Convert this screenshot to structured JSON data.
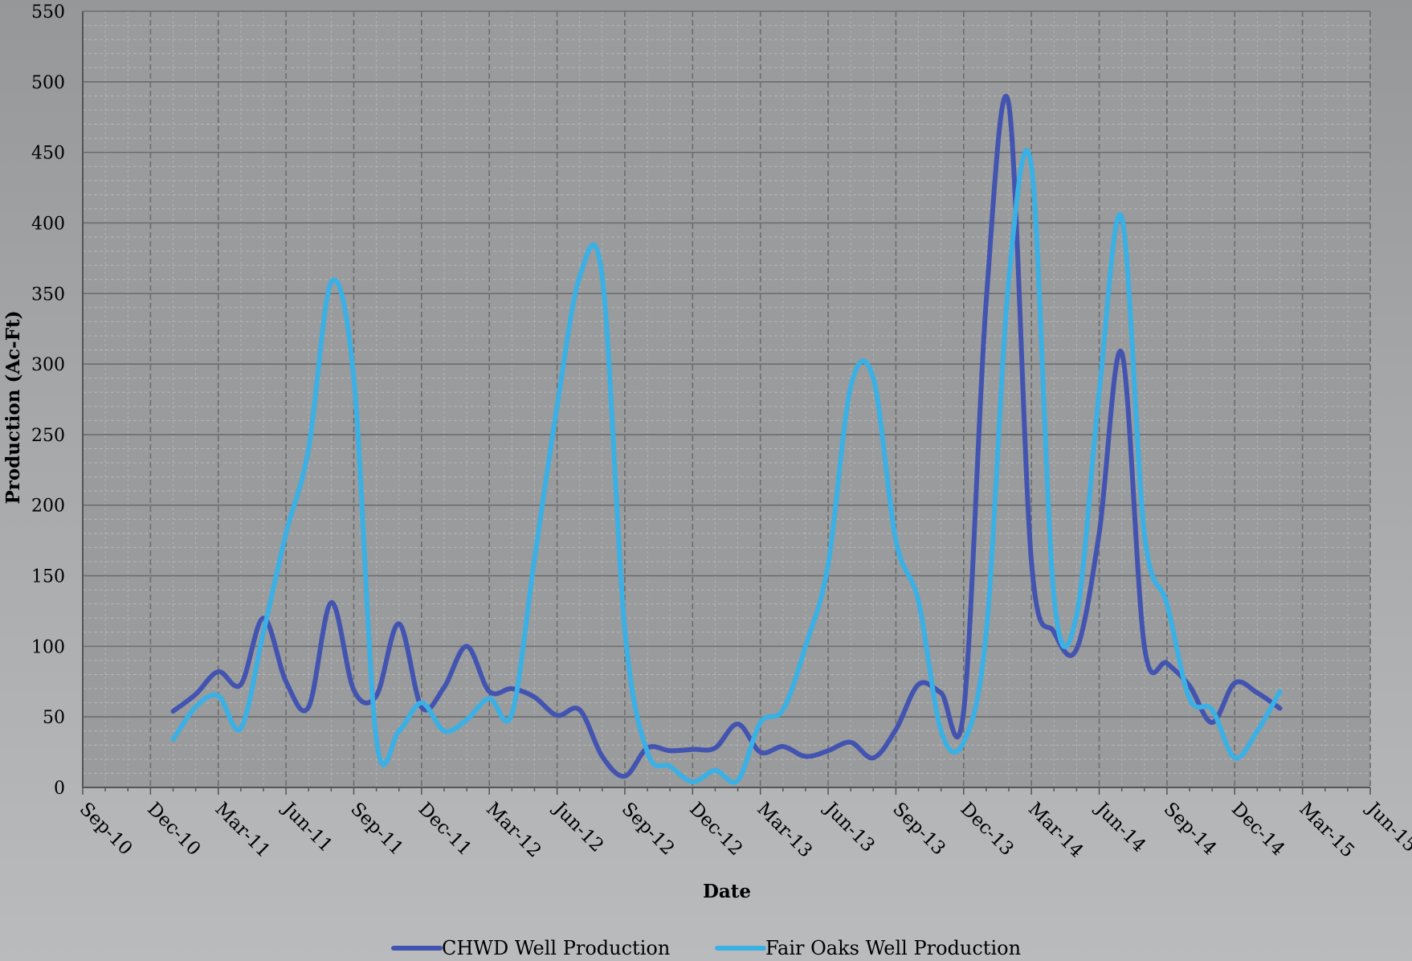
{
  "chart_data": {
    "type": "line",
    "title": "",
    "xlabel": "Date",
    "ylabel": "Production (Ac-Ft)",
    "ylim": [
      0,
      550
    ],
    "y_ticks": [
      0,
      50,
      100,
      150,
      200,
      250,
      300,
      350,
      400,
      450,
      500,
      550
    ],
    "xlim": [
      "2010-09",
      "2015-06"
    ],
    "x_ticks": [
      "Sep-10",
      "Dec-10",
      "Mar-11",
      "Jun-11",
      "Sep-11",
      "Dec-11",
      "Mar-12",
      "Jun-12",
      "Sep-12",
      "Dec-12",
      "Mar-13",
      "Jun-13",
      "Sep-13",
      "Dec-13",
      "Mar-14",
      "Jun-14",
      "Sep-14",
      "Dec-14",
      "Mar-15",
      "Jun-15"
    ],
    "grid": true,
    "legend_position": "bottom",
    "series": [
      {
        "name": "CHWD Well Production",
        "color": "#4354b0",
        "points": [
          [
            "2011-01",
            54
          ],
          [
            "2011-02",
            66
          ],
          [
            "2011-03",
            82
          ],
          [
            "2011-04",
            73
          ],
          [
            "2011-05",
            120
          ],
          [
            "2011-06",
            75
          ],
          [
            "2011-07",
            57
          ],
          [
            "2011-08",
            131
          ],
          [
            "2011-09",
            69
          ],
          [
            "2011-10",
            65
          ],
          [
            "2011-11",
            116
          ],
          [
            "2011-12",
            57
          ],
          [
            "2012-01",
            71
          ],
          [
            "2012-02",
            100
          ],
          [
            "2012-03",
            68
          ],
          [
            "2012-04",
            70
          ],
          [
            "2012-05",
            64
          ],
          [
            "2012-06",
            51
          ],
          [
            "2012-07",
            55
          ],
          [
            "2012-08",
            22
          ],
          [
            "2012-09",
            8
          ],
          [
            "2012-10",
            28
          ],
          [
            "2012-11",
            26
          ],
          [
            "2012-12",
            27
          ],
          [
            "2013-01",
            28
          ],
          [
            "2013-02",
            45
          ],
          [
            "2013-03",
            25
          ],
          [
            "2013-04",
            29
          ],
          [
            "2013-05",
            22
          ],
          [
            "2013-06",
            26
          ],
          [
            "2013-07",
            32
          ],
          [
            "2013-08",
            21
          ],
          [
            "2013-09",
            41
          ],
          [
            "2013-10",
            73
          ],
          [
            "2013-11",
            67
          ],
          [
            "2013-12",
            54
          ],
          [
            "2014-01",
            345
          ],
          [
            "2014-02",
            484
          ],
          [
            "2014-03",
            160
          ],
          [
            "2014-04",
            110
          ],
          [
            "2014-05",
            98
          ],
          [
            "2014-06",
            180
          ],
          [
            "2014-07",
            308
          ],
          [
            "2014-08",
            100
          ],
          [
            "2014-09",
            88
          ],
          [
            "2014-10",
            72
          ],
          [
            "2014-11",
            46
          ],
          [
            "2014-12",
            74
          ],
          [
            "2015-01",
            67
          ],
          [
            "2015-02",
            56
          ]
        ]
      },
      {
        "name": "Fair Oaks Well Production",
        "color": "#3bb0e4",
        "points": [
          [
            "2011-01",
            34
          ],
          [
            "2011-02",
            57
          ],
          [
            "2011-03",
            65
          ],
          [
            "2011-04",
            42
          ],
          [
            "2011-05",
            110
          ],
          [
            "2011-06",
            180
          ],
          [
            "2011-07",
            240
          ],
          [
            "2011-08",
            358
          ],
          [
            "2011-09",
            290
          ],
          [
            "2011-10",
            34
          ],
          [
            "2011-11",
            40
          ],
          [
            "2011-12",
            60
          ],
          [
            "2012-01",
            40
          ],
          [
            "2012-02",
            48
          ],
          [
            "2012-03",
            63
          ],
          [
            "2012-04",
            52
          ],
          [
            "2012-05",
            162
          ],
          [
            "2012-06",
            270
          ],
          [
            "2012-07",
            362
          ],
          [
            "2012-08",
            362
          ],
          [
            "2012-09",
            112
          ],
          [
            "2012-10",
            25
          ],
          [
            "2012-11",
            15
          ],
          [
            "2012-12",
            4
          ],
          [
            "2013-01",
            12
          ],
          [
            "2013-02",
            5
          ],
          [
            "2013-03",
            46
          ],
          [
            "2013-04",
            55
          ],
          [
            "2013-05",
            100
          ],
          [
            "2013-06",
            158
          ],
          [
            "2013-07",
            284
          ],
          [
            "2013-08",
            290
          ],
          [
            "2013-09",
            175
          ],
          [
            "2013-10",
            132
          ],
          [
            "2013-11",
            40
          ],
          [
            "2013-12",
            32
          ],
          [
            "2014-01",
            110
          ],
          [
            "2014-02",
            360
          ],
          [
            "2014-03",
            440
          ],
          [
            "2014-04",
            135
          ],
          [
            "2014-05",
            122
          ],
          [
            "2014-06",
            280
          ],
          [
            "2014-07",
            404
          ],
          [
            "2014-08",
            180
          ],
          [
            "2014-09",
            130
          ],
          [
            "2014-10",
            63
          ],
          [
            "2014-11",
            55
          ],
          [
            "2014-12",
            21
          ],
          [
            "2015-01",
            40
          ],
          [
            "2015-02",
            68
          ]
        ]
      }
    ]
  }
}
